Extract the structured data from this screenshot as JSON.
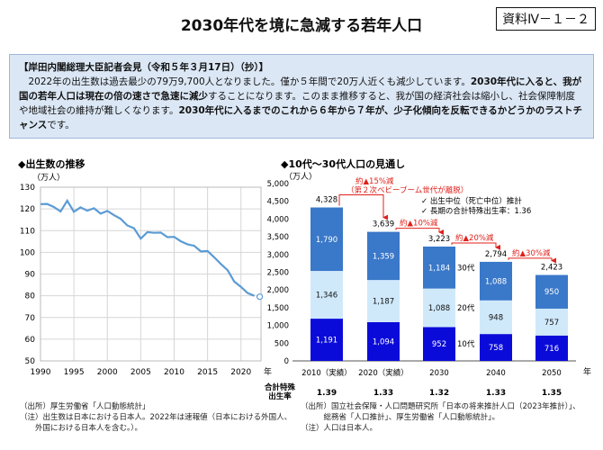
{
  "header": {
    "title": "2030年代を境に急減する若年人口",
    "badge": "資料Ⅳ－１－２"
  },
  "quote": {
    "heading": "【岸田内閣総理大臣記者会見（令和５年３月17日）（抄）】",
    "segments": [
      {
        "text": "2022年の出生数は過去最少の79万9,700人となりました。僅か５年間で20万人近くも減少しています。",
        "bold": false
      },
      {
        "text": "2030年代に入ると、我が国の若年人口は現在の倍の速さで急速に減少",
        "bold": true
      },
      {
        "text": "することになります。このまま推移すると、我が国の経済社会は縮小し、社会保障制度や地域社会の維持が難しくなります。",
        "bold": false
      },
      {
        "text": "2030年代に入るまでのこれから６年から７年が、少子化傾向を反転できるかどうかのラストチャンス",
        "bold": true
      },
      {
        "text": "です。",
        "bold": false
      }
    ]
  },
  "colors": {
    "line": "#5b9bd5",
    "teen": "#0b0bd9",
    "twenties": "#cfe9fb",
    "thirties": "#3a78c9",
    "arrow": "#e0201b",
    "quote_bg": "#dbe7f5"
  },
  "chart_data": [
    {
      "type": "line",
      "title": "◆出生数の推移",
      "ylabel": "（万人）",
      "xlabel": "年",
      "ylim": [
        50,
        130
      ],
      "yticks": [
        50,
        60,
        70,
        80,
        90,
        100,
        110,
        120,
        130
      ],
      "xlim": [
        1990,
        2023
      ],
      "xticks": [
        1990,
        1995,
        2000,
        2005,
        2010,
        2015,
        2020
      ],
      "grid": true,
      "x": [
        1990,
        1991,
        1992,
        1993,
        1994,
        1995,
        1996,
        1997,
        1998,
        1999,
        2000,
        2001,
        2002,
        2003,
        2004,
        2005,
        2006,
        2007,
        2008,
        2009,
        2010,
        2011,
        2012,
        2013,
        2014,
        2015,
        2016,
        2017,
        2018,
        2019,
        2020,
        2021,
        2022
      ],
      "y": [
        122.2,
        122.3,
        120.9,
        118.8,
        123.8,
        118.7,
        120.7,
        119.2,
        120.3,
        117.8,
        119.1,
        117.1,
        115.4,
        112.4,
        111.1,
        106.3,
        109.3,
        109.0,
        109.1,
        107.0,
        107.1,
        105.1,
        103.7,
        103.0,
        100.4,
        100.6,
        97.7,
        94.6,
        91.8,
        86.5,
        84.1,
        81.2,
        79.97
      ],
      "highlight_last_point": true,
      "notes": [
        "（出所）厚生労働省「人口動態統計」",
        "（注）出生数は日本における日本人。2022年は速報値（日本における外国人、",
        "　　外国における日本人を含む。）。"
      ]
    },
    {
      "type": "bar",
      "stacked": true,
      "title": "◆10代～30代人口の見通し",
      "ylabel": "（万人）",
      "xlabel": "年",
      "ylim": [
        0,
        5000
      ],
      "yticks": [
        0,
        500,
        1000,
        1500,
        2000,
        2500,
        3000,
        3500,
        4000,
        4500,
        5000
      ],
      "ytick_labels": [
        "0",
        "500",
        "1,000",
        "1,500",
        "2,000",
        "2,500",
        "3,000",
        "3,500",
        "4,000",
        "4,500",
        "5,000"
      ],
      "categories": [
        "2010（実績）",
        "2020（実績）",
        "2030",
        "2040",
        "2050"
      ],
      "series": [
        {
          "name": "10代",
          "values": [
            1191,
            1094,
            952,
            758,
            716
          ],
          "labels": [
            "1,191",
            "1,094",
            "952",
            "758",
            "716"
          ]
        },
        {
          "name": "20代",
          "values": [
            1346,
            1187,
            1088,
            948,
            757
          ],
          "labels": [
            "1,346",
            "1,187",
            "1,088",
            "948",
            "757"
          ]
        },
        {
          "name": "30代",
          "values": [
            1790,
            1359,
            1184,
            1088,
            950
          ],
          "labels": [
            "1,790",
            "1,359",
            "1,184",
            "1,088",
            "950"
          ]
        }
      ],
      "totals": [
        4328,
        3639,
        3223,
        2794,
        2423
      ],
      "total_labels": [
        "4,328",
        "3,639",
        "3,223",
        "2,794",
        "2,423"
      ],
      "legend": [
        "✓ 出生中位（死亡中位）推計",
        "✓ 長期の合計特殊出生率：1.36"
      ],
      "annotations": [
        {
          "text": "約▲15%減",
          "sub": "（第２次ベビーブーム世代が離脱）",
          "from": 0,
          "to": 1
        },
        {
          "text": "約▲10%減",
          "from": 1,
          "to": 2
        },
        {
          "text": "約▲20%減",
          "from": 2,
          "to": 3
        },
        {
          "text": "約▲30%減",
          "from": 3,
          "to": 4
        }
      ],
      "fertility_label": "合計特殊出生率",
      "fertility": [
        "1.39",
        "1.33",
        "1.32",
        "1.33",
        "1.35"
      ],
      "notes": [
        "（出所）国立社会保障・人口問題研究所「日本の将来推計人口（2023年推計）」、",
        "　　　総務省「人口推計」、厚生労働省「人口動態統計」。",
        "（注）人口は日本人。"
      ]
    }
  ]
}
